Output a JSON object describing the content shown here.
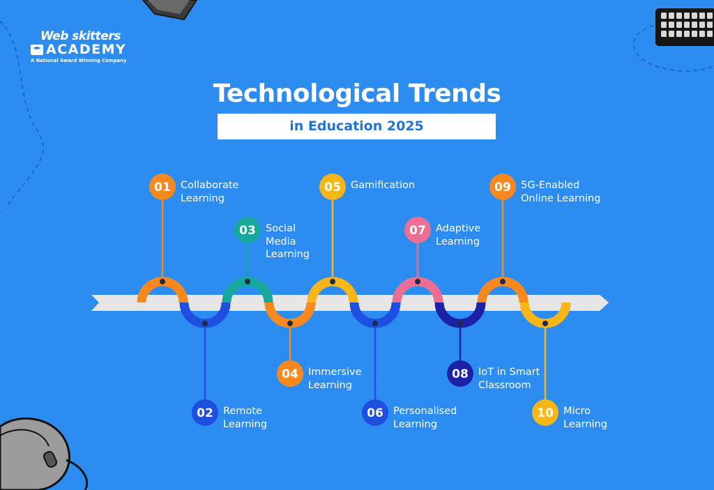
{
  "brand": {
    "name_top": "Web skitters",
    "name_bottom": "ACADEMY",
    "tagline": "A National Award Winning Company"
  },
  "header": {
    "title": "Technological Trends",
    "subtitle": "in Education 2025"
  },
  "colors": {
    "background": "#2d8cf0",
    "arrow": "#e6e6e6",
    "orange": "#f7891f",
    "teal": "#16a89c",
    "yellow": "#f8b617",
    "pink": "#eb6f93",
    "blue": "#1f4fe0",
    "navy": "#1c22a8"
  },
  "steps": [
    {
      "number": "01",
      "label": "Collaborate\nLearning",
      "color": "orange",
      "side": "top"
    },
    {
      "number": "02",
      "label": "Remote\nLearning",
      "color": "blue",
      "side": "bottom"
    },
    {
      "number": "03",
      "label": "Social\nMedia\nLearning",
      "color": "teal",
      "side": "top"
    },
    {
      "number": "04",
      "label": "Immersive\nLearning",
      "color": "orange",
      "side": "bottom"
    },
    {
      "number": "05",
      "label": "Gamification",
      "color": "yellow",
      "side": "top"
    },
    {
      "number": "06",
      "label": "Personalised\nLearning",
      "color": "blue",
      "side": "bottom"
    },
    {
      "number": "07",
      "label": "Adaptive\nLearning",
      "color": "pink",
      "side": "top"
    },
    {
      "number": "08",
      "label": "IoT in Smart\nClassroom",
      "color": "navy",
      "side": "bottom"
    },
    {
      "number": "09",
      "label": "5G-Enabled\nOnline Learning",
      "color": "orange",
      "side": "top"
    },
    {
      "number": "10",
      "label": "Micro\nLearning",
      "color": "yellow",
      "side": "bottom"
    }
  ],
  "decorations": [
    "laptop-icon",
    "keyboard-icon",
    "mouse-icon"
  ]
}
